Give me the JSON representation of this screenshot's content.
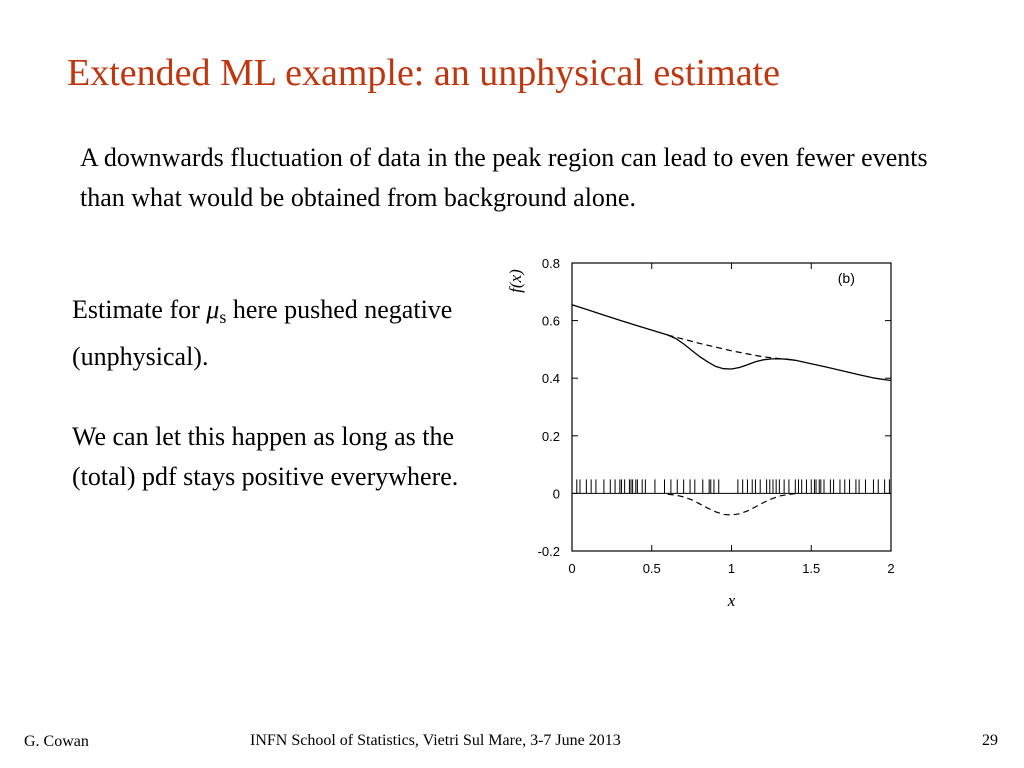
{
  "slide": {
    "title": "Extended ML example:  an unphysical estimate",
    "intro": "A downwards fluctuation of data in the peak region can lead to even fewer events than what would be obtained from background alone.",
    "estimate_prefix": "Estimate for ",
    "mu_symbol": "μ",
    "mu_subscript": "s",
    "estimate_suffix": " here pushed negative (unphysical).",
    "paragraph2": "We can let this happen as long as the (total) pdf stays positive everywhere."
  },
  "footer": {
    "author": "G. Cowan",
    "event": "INFN School of Statistics, Vietri Sul Mare, 3-7 June 2013",
    "page": "29"
  },
  "chart_data": {
    "type": "line",
    "xlabel": "x",
    "ylabel": "f(x)",
    "xlim": [
      0,
      2
    ],
    "ylim": [
      -0.2,
      0.8
    ],
    "xticks": [
      0,
      0.5,
      1,
      1.5,
      2
    ],
    "xtick_labels": [
      "0",
      "0.5",
      "1",
      "1.5",
      "2"
    ],
    "yticks": [
      -0.2,
      0,
      0.2,
      0.4,
      0.6,
      0.8
    ],
    "ytick_labels": [
      "-0.2",
      "0",
      "0.2",
      "0.4",
      "0.6",
      "0.8"
    ],
    "annotation": "(b)",
    "series": [
      {
        "style": "solid",
        "x": [
          0,
          0.1,
          0.2,
          0.3,
          0.4,
          0.5,
          0.6,
          0.65,
          0.7,
          0.75,
          0.8,
          0.85,
          0.9,
          0.95,
          1.0,
          1.05,
          1.1,
          1.15,
          1.2,
          1.25,
          1.3,
          1.35,
          1.4,
          1.5,
          1.6,
          1.7,
          1.8,
          1.9,
          2.0
        ],
        "y": [
          0.655,
          0.637,
          0.619,
          0.601,
          0.584,
          0.567,
          0.55,
          0.538,
          0.519,
          0.497,
          0.475,
          0.457,
          0.441,
          0.433,
          0.432,
          0.437,
          0.447,
          0.457,
          0.464,
          0.467,
          0.467,
          0.466,
          0.462,
          0.45,
          0.438,
          0.425,
          0.412,
          0.4,
          0.392
        ]
      },
      {
        "style": "dashed",
        "x": [
          0.6,
          0.8,
          1.0,
          1.2,
          1.4
        ],
        "y": [
          0.55,
          0.521,
          0.495,
          0.474,
          0.462
        ]
      },
      {
        "style": "dashed",
        "x": [
          0.6,
          0.65,
          0.7,
          0.75,
          0.8,
          0.85,
          0.9,
          0.95,
          1.0,
          1.05,
          1.1,
          1.15,
          1.2,
          1.25,
          1.3,
          1.35,
          1.4
        ],
        "y": [
          -0.003,
          -0.006,
          -0.012,
          -0.022,
          -0.036,
          -0.051,
          -0.064,
          -0.073,
          -0.075,
          -0.071,
          -0.061,
          -0.047,
          -0.032,
          -0.019,
          -0.009,
          -0.004,
          -0.001
        ]
      }
    ],
    "rug": [
      0.03,
      0.05,
      0.09,
      0.12,
      0.15,
      0.2,
      0.24,
      0.27,
      0.3,
      0.31,
      0.33,
      0.36,
      0.37,
      0.38,
      0.4,
      0.41,
      0.44,
      0.46,
      0.52,
      0.58,
      0.62,
      0.66,
      0.7,
      0.74,
      0.77,
      0.82,
      0.86,
      0.87,
      0.89,
      0.92,
      1.04,
      1.07,
      1.1,
      1.13,
      1.15,
      1.18,
      1.22,
      1.24,
      1.26,
      1.28,
      1.3,
      1.33,
      1.36,
      1.4,
      1.42,
      1.44,
      1.47,
      1.5,
      1.52,
      1.53,
      1.55,
      1.56,
      1.58,
      1.62,
      1.64,
      1.68,
      1.71,
      1.74,
      1.78,
      1.8,
      1.84,
      1.89,
      1.92,
      1.96,
      1.99
    ]
  }
}
